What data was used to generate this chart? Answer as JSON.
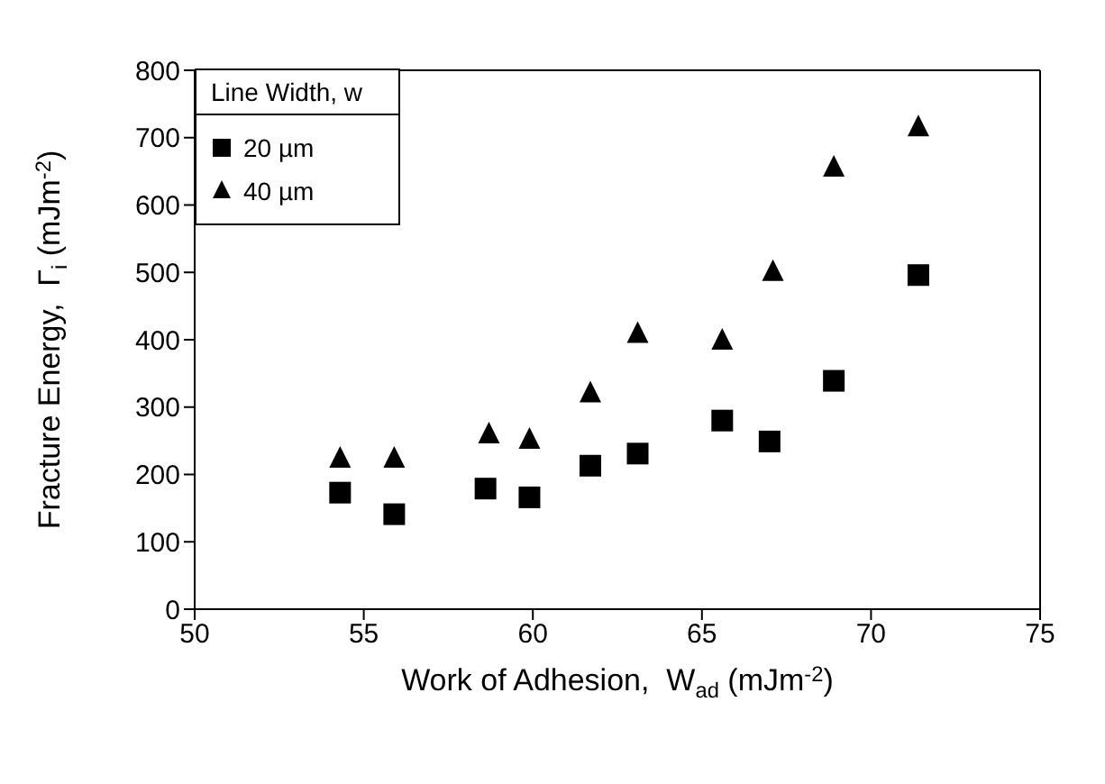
{
  "chart_data": {
    "type": "scatter",
    "xlabel": "Work of Adhesion,  W$_{ad}$ (mJm$^{-2}$)",
    "ylabel": "Fracture Energy,  Γ$_{i}$ (mJm$^{-2}$)",
    "legend_title": "Line Width, w",
    "xlim": [
      50,
      75
    ],
    "xticks": [
      50,
      55,
      60,
      65,
      70,
      75
    ],
    "ylim": [
      0,
      800
    ],
    "yticks": [
      0,
      100,
      200,
      300,
      400,
      500,
      600,
      700,
      800
    ],
    "legend": "top left",
    "series": [
      {
        "name": "20 µm",
        "color": "#000000",
        "marker": "square",
        "x": [
          54.3,
          55.9,
          58.6,
          59.9,
          61.7,
          63.1,
          65.6,
          67.0,
          68.9,
          71.4
        ],
        "values": [
          173,
          141,
          179,
          166,
          213,
          231,
          280,
          249,
          339,
          496
        ]
      },
      {
        "name": "40 µm",
        "color": "#000000",
        "marker": "triangle",
        "x": [
          54.3,
          55.9,
          58.7,
          59.9,
          61.7,
          63.1,
          65.6,
          67.1,
          68.9,
          71.4
        ],
        "values": [
          223,
          223,
          259,
          251,
          320,
          408,
          398,
          500,
          655,
          715
        ]
      }
    ]
  }
}
